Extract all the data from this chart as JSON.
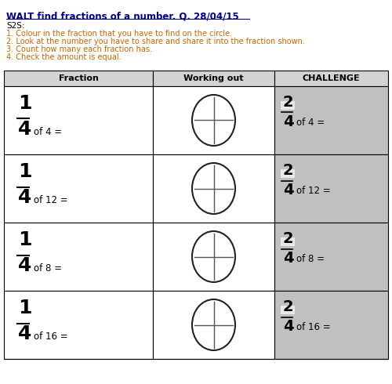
{
  "title": "WALT find fractions of a number. Q. 28/04/15",
  "s2s_label": "S2S:",
  "instructions": [
    "1. Colour in the fraction that you have to find on the circle.",
    "2. Look at the number you have to share and share it into the fraction shown.",
    "3. Count how many each fraction has.",
    "4. Check the amount is equal."
  ],
  "col_headers": [
    "Fraction",
    "Working out",
    "CHALLENGE"
  ],
  "rows": [
    {
      "fraction_num": "1",
      "fraction_den": "4",
      "number": "4",
      "challenge_num": "2",
      "challenge_den": "4",
      "challenge_number": "4"
    },
    {
      "fraction_num": "1",
      "fraction_den": "4",
      "number": "12",
      "challenge_num": "2",
      "challenge_den": "4",
      "challenge_number": "12"
    },
    {
      "fraction_num": "1",
      "fraction_den": "4",
      "number": "8",
      "challenge_num": "2",
      "challenge_den": "4",
      "challenge_number": "8"
    },
    {
      "fraction_num": "1",
      "fraction_den": "4",
      "number": "16",
      "challenge_num": "2",
      "challenge_den": "4",
      "challenge_number": "16"
    }
  ],
  "bg_color": "#ffffff",
  "challenge_bg": "#c0c0c0",
  "header_bg": "#d3d3d3",
  "border_color": "#000000",
  "title_color": "#00008B",
  "text_color": "#000000",
  "instruction_color": "#cc6600"
}
